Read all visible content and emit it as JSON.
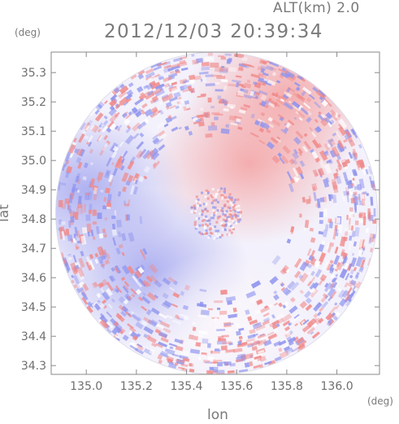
{
  "header": {
    "altitude_label": "ALT(km) 2.0",
    "datetime": "2012/12/03 20:39:34"
  },
  "units": {
    "x_unit": "(deg)",
    "y_unit": "(deg)"
  },
  "colors": {
    "positive": "#f08a8a",
    "negative": "#8f94ee",
    "neutral": "#ffffff",
    "frame": "#8a8a8a"
  },
  "chart_data": {
    "type": "heatmap",
    "title": "2012/12/03 20:39:34",
    "subtitle": "ALT(km) 2.0",
    "xlabel": "lon",
    "ylabel": "lat",
    "xlim": [
      134.86,
      136.17
    ],
    "ylim": [
      34.27,
      35.37
    ],
    "xticks": [
      "135.0",
      "135.2",
      "135.4",
      "135.6",
      "135.8",
      "136.0"
    ],
    "yticks": [
      "34.3",
      "34.4",
      "34.5",
      "34.6",
      "34.7",
      "34.8",
      "34.9",
      "35.0",
      "35.1",
      "35.2",
      "35.3"
    ],
    "center": {
      "lon": 135.52,
      "lat": 34.82
    },
    "radius_deg_lat": 0.55,
    "colorscale": "diverging blue-white-red",
    "regions": [
      {
        "description": "red",
        "lon": 135.65,
        "lat": 34.99,
        "sign": 1
      },
      {
        "description": "red",
        "lon": 135.8,
        "lat": 35.22,
        "sign": 1
      },
      {
        "description": "blue",
        "lon": 135.25,
        "lat": 34.63,
        "sign": -1
      },
      {
        "description": "blue",
        "lon": 135.0,
        "lat": 34.9,
        "sign": -1
      },
      {
        "description": "pale",
        "lon": 135.55,
        "lat": 34.45,
        "sign": 0
      }
    ]
  }
}
